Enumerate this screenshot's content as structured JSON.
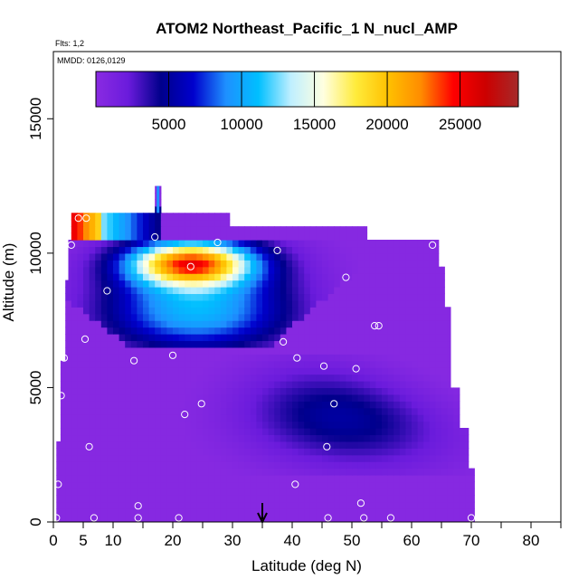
{
  "chart_data": {
    "type": "heatmap",
    "title": "ATOM2 Northeast_Pacific_1 N_nucl_AMP",
    "flights_label": "Flts: 1,2",
    "dates_label": "MMDD: 0126,0129",
    "xlabel": "Latitude (deg N)",
    "ylabel": "Altitude (m)",
    "xlim": [
      0,
      85
    ],
    "ylim": [
      0,
      17500
    ],
    "x_ticks": [
      0,
      5,
      10,
      20,
      30,
      40,
      50,
      60,
      70,
      80
    ],
    "x_minor_ticks": [
      15,
      25,
      35,
      45,
      55,
      65,
      75,
      85
    ],
    "y_ticks": [
      0,
      5000,
      10000,
      15000
    ],
    "colorbar": {
      "range": [
        0,
        29000
      ],
      "ticks": [
        5000,
        10000,
        15000,
        20000,
        25000
      ],
      "tick_labels": [
        "5000",
        "10000",
        "15000",
        "20000",
        "25000"
      ],
      "colors": [
        "#8a2be2",
        "#6a1bdc",
        "#00008b",
        "#0000cd",
        "#1e90ff",
        "#00bfff",
        "#bfefff",
        "#ffffe0",
        "#ffeb3b",
        "#ffc000",
        "#ff8c00",
        "#ff0000",
        "#cc0000",
        "#a52a2a"
      ]
    },
    "background_value_label": "~0 (purple)",
    "regions": [
      {
        "name": "upper blob",
        "lat_range": [
          3,
          47
        ],
        "alt_range": [
          6500,
          10500
        ],
        "peak_value": 19000,
        "peak_lat": 23,
        "peak_alt": 9600
      },
      {
        "name": "top-left strip",
        "lat_range": [
          3,
          18
        ],
        "alt_range": [
          10500,
          11500
        ],
        "peak_value": 25000,
        "peak_lat": 6,
        "peak_alt": 11200
      },
      {
        "name": "mid blob",
        "lat_range": [
          27,
          60
        ],
        "alt_range": [
          2000,
          6000
        ],
        "peak_value": 3500,
        "peak_lat": 48,
        "peak_alt": 4000
      }
    ],
    "samples": [
      {
        "lat": 0.5,
        "alt": 150
      },
      {
        "lat": 0.8,
        "alt": 1400
      },
      {
        "lat": 1.3,
        "alt": 4700
      },
      {
        "lat": 1.8,
        "alt": 6100
      },
      {
        "lat": 3.0,
        "alt": 10300
      },
      {
        "lat": 4.2,
        "alt": 11300
      },
      {
        "lat": 5.5,
        "alt": 11300
      },
      {
        "lat": 5.3,
        "alt": 6800
      },
      {
        "lat": 6.0,
        "alt": 2800
      },
      {
        "lat": 6.8,
        "alt": 150
      },
      {
        "lat": 9.0,
        "alt": 8600
      },
      {
        "lat": 13.5,
        "alt": 6000
      },
      {
        "lat": 14.2,
        "alt": 600
      },
      {
        "lat": 14.2,
        "alt": 150
      },
      {
        "lat": 17.0,
        "alt": 10600
      },
      {
        "lat": 20.0,
        "alt": 6200
      },
      {
        "lat": 21.0,
        "alt": 150
      },
      {
        "lat": 22.0,
        "alt": 4000
      },
      {
        "lat": 23.0,
        "alt": 9500
      },
      {
        "lat": 24.8,
        "alt": 4400
      },
      {
        "lat": 27.5,
        "alt": 10400
      },
      {
        "lat": 37.5,
        "alt": 10100
      },
      {
        "lat": 38.5,
        "alt": 6700
      },
      {
        "lat": 40.5,
        "alt": 1400
      },
      {
        "lat": 40.8,
        "alt": 6100
      },
      {
        "lat": 45.3,
        "alt": 5800
      },
      {
        "lat": 45.8,
        "alt": 2800
      },
      {
        "lat": 46.0,
        "alt": 150
      },
      {
        "lat": 47.0,
        "alt": 4400
      },
      {
        "lat": 49.0,
        "alt": 9100
      },
      {
        "lat": 50.7,
        "alt": 5700
      },
      {
        "lat": 51.5,
        "alt": 700
      },
      {
        "lat": 52.0,
        "alt": 150
      },
      {
        "lat": 53.8,
        "alt": 7300
      },
      {
        "lat": 54.5,
        "alt": 7300
      },
      {
        "lat": 56.5,
        "alt": 150
      },
      {
        "lat": 63.5,
        "alt": 10300
      },
      {
        "lat": 70.0,
        "alt": 150
      }
    ],
    "arrow_marker_lat": 35
  }
}
